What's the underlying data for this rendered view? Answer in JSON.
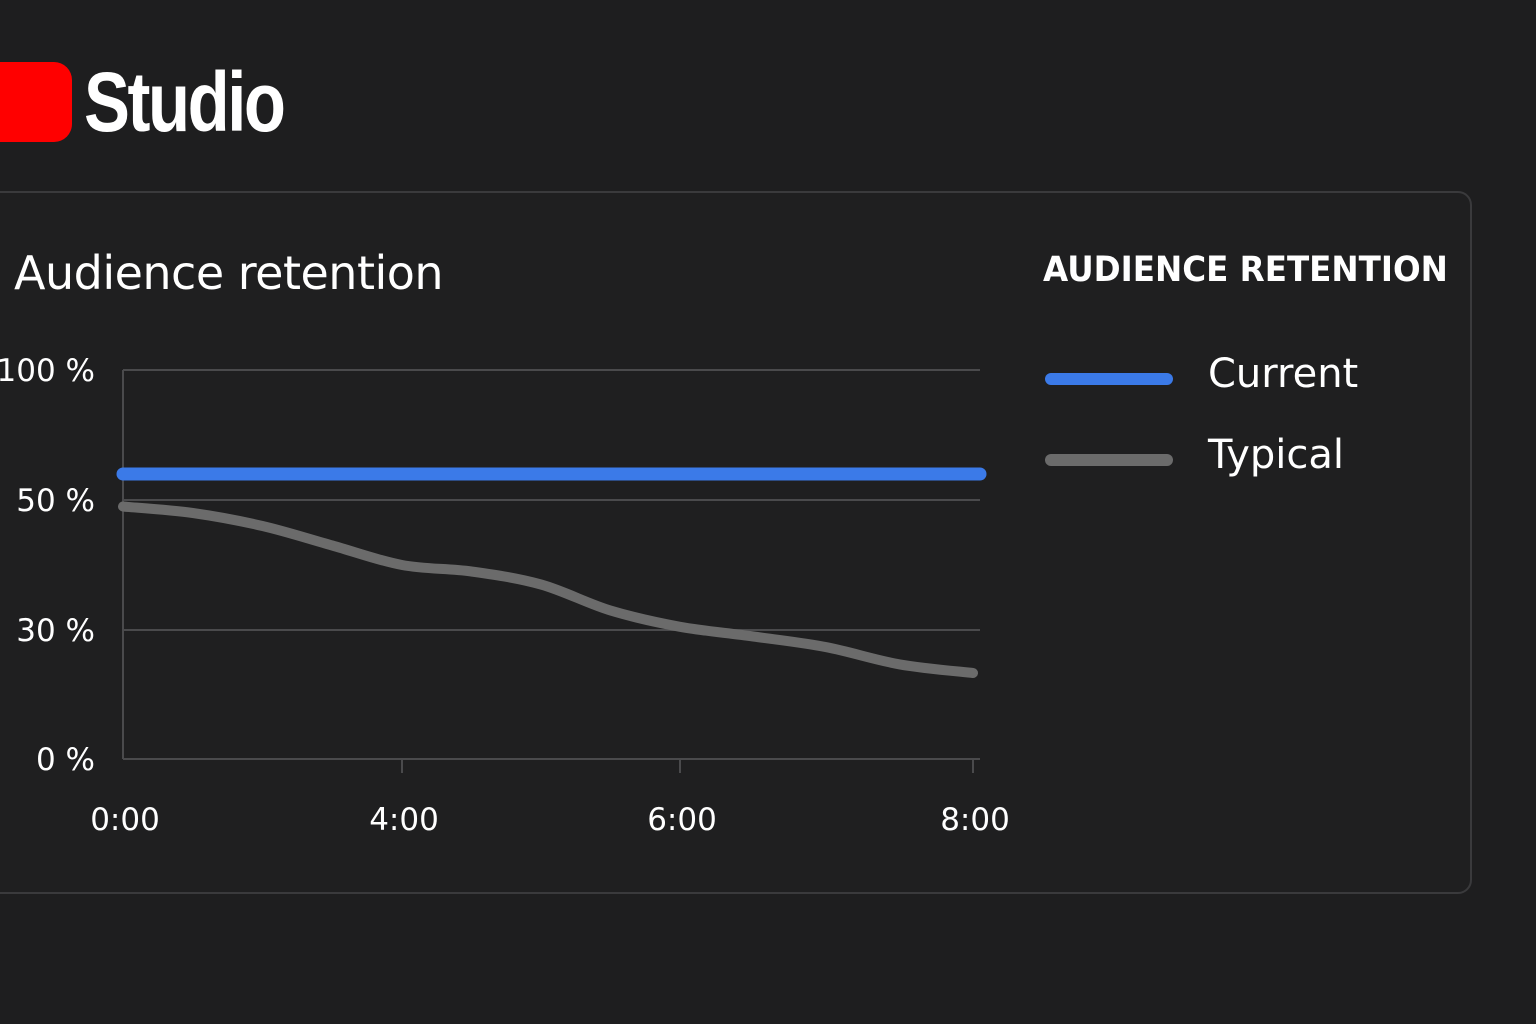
{
  "brand": {
    "name": "Studio",
    "icon": "youtube-play-icon",
    "badge_color": "#ff0000"
  },
  "card": {
    "title": "Audience retention"
  },
  "legend": {
    "title": "AUDIENCE RETENTION",
    "items": [
      {
        "label": "Current",
        "color": "#3b7ae8"
      },
      {
        "label": "Typical",
        "color": "#6b6b6b"
      }
    ]
  },
  "chart_data": {
    "type": "line",
    "title": "Audience retention",
    "xlabel": "",
    "ylabel": "",
    "x_ticks": [
      "0:00",
      "4:00",
      "6:00",
      "8:00"
    ],
    "y_ticks": [
      "0 %",
      "30 %",
      "50 %",
      "100 %"
    ],
    "grid": true,
    "legend_position": "right",
    "series": [
      {
        "name": "Current",
        "color": "#3b7ae8",
        "points": [
          [
            "0:00",
            60
          ],
          [
            "8:00",
            60
          ]
        ]
      },
      {
        "name": "Typical",
        "color": "#6b6b6b",
        "points": [
          [
            "0:00",
            49
          ],
          [
            "1:00",
            48
          ],
          [
            "2:00",
            46
          ],
          [
            "3:00",
            43
          ],
          [
            "4:00",
            40
          ],
          [
            "4:30",
            39
          ],
          [
            "5:00",
            37
          ],
          [
            "5:30",
            33
          ],
          [
            "6:00",
            30.5
          ],
          [
            "6:30",
            28.5
          ],
          [
            "7:00",
            26
          ],
          [
            "7:30",
            22
          ],
          [
            "8:00",
            20
          ]
        ]
      }
    ]
  }
}
